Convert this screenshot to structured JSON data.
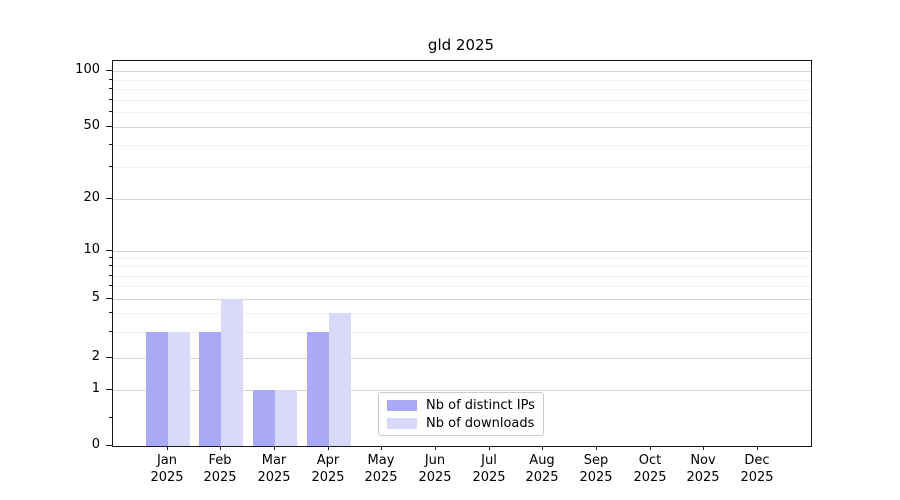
{
  "title": "gld 2025",
  "chart_data": {
    "type": "bar",
    "title": "gld 2025",
    "categories": [
      "Jan 2025",
      "Feb 2025",
      "Mar 2025",
      "Apr 2025",
      "May 2025",
      "Jun 2025",
      "Jul 2025",
      "Aug 2025",
      "Sep 2025",
      "Oct 2025",
      "Nov 2025",
      "Dec 2025"
    ],
    "series": [
      {
        "name": "Nb of distinct IPs",
        "color": "#a9a9f5",
        "values": [
          3,
          3,
          1,
          3,
          0,
          0,
          0,
          0,
          0,
          0,
          0,
          0
        ]
      },
      {
        "name": "Nb of downloads",
        "color": "#d9d9f9",
        "values": [
          3,
          5,
          1,
          4,
          0,
          0,
          0,
          0,
          0,
          0,
          0,
          0
        ]
      }
    ],
    "yscale": "log-like",
    "ylim": [
      0,
      100
    ],
    "y_ticks": [
      0,
      1,
      2,
      5,
      10,
      20,
      50,
      100
    ],
    "y_minor_gridlines": [
      3,
      4,
      6,
      7,
      8,
      9,
      30,
      40,
      60,
      70,
      80,
      90
    ],
    "y_minor_ticks": [
      0.5,
      3,
      4,
      6,
      7,
      8,
      9,
      30,
      40,
      60,
      70,
      80,
      90
    ],
    "grid": "on",
    "legend_position": "bottom-center-inside"
  },
  "legend": {
    "items": [
      {
        "label": "Nb of distinct IPs"
      },
      {
        "label": "Nb of downloads"
      }
    ]
  }
}
